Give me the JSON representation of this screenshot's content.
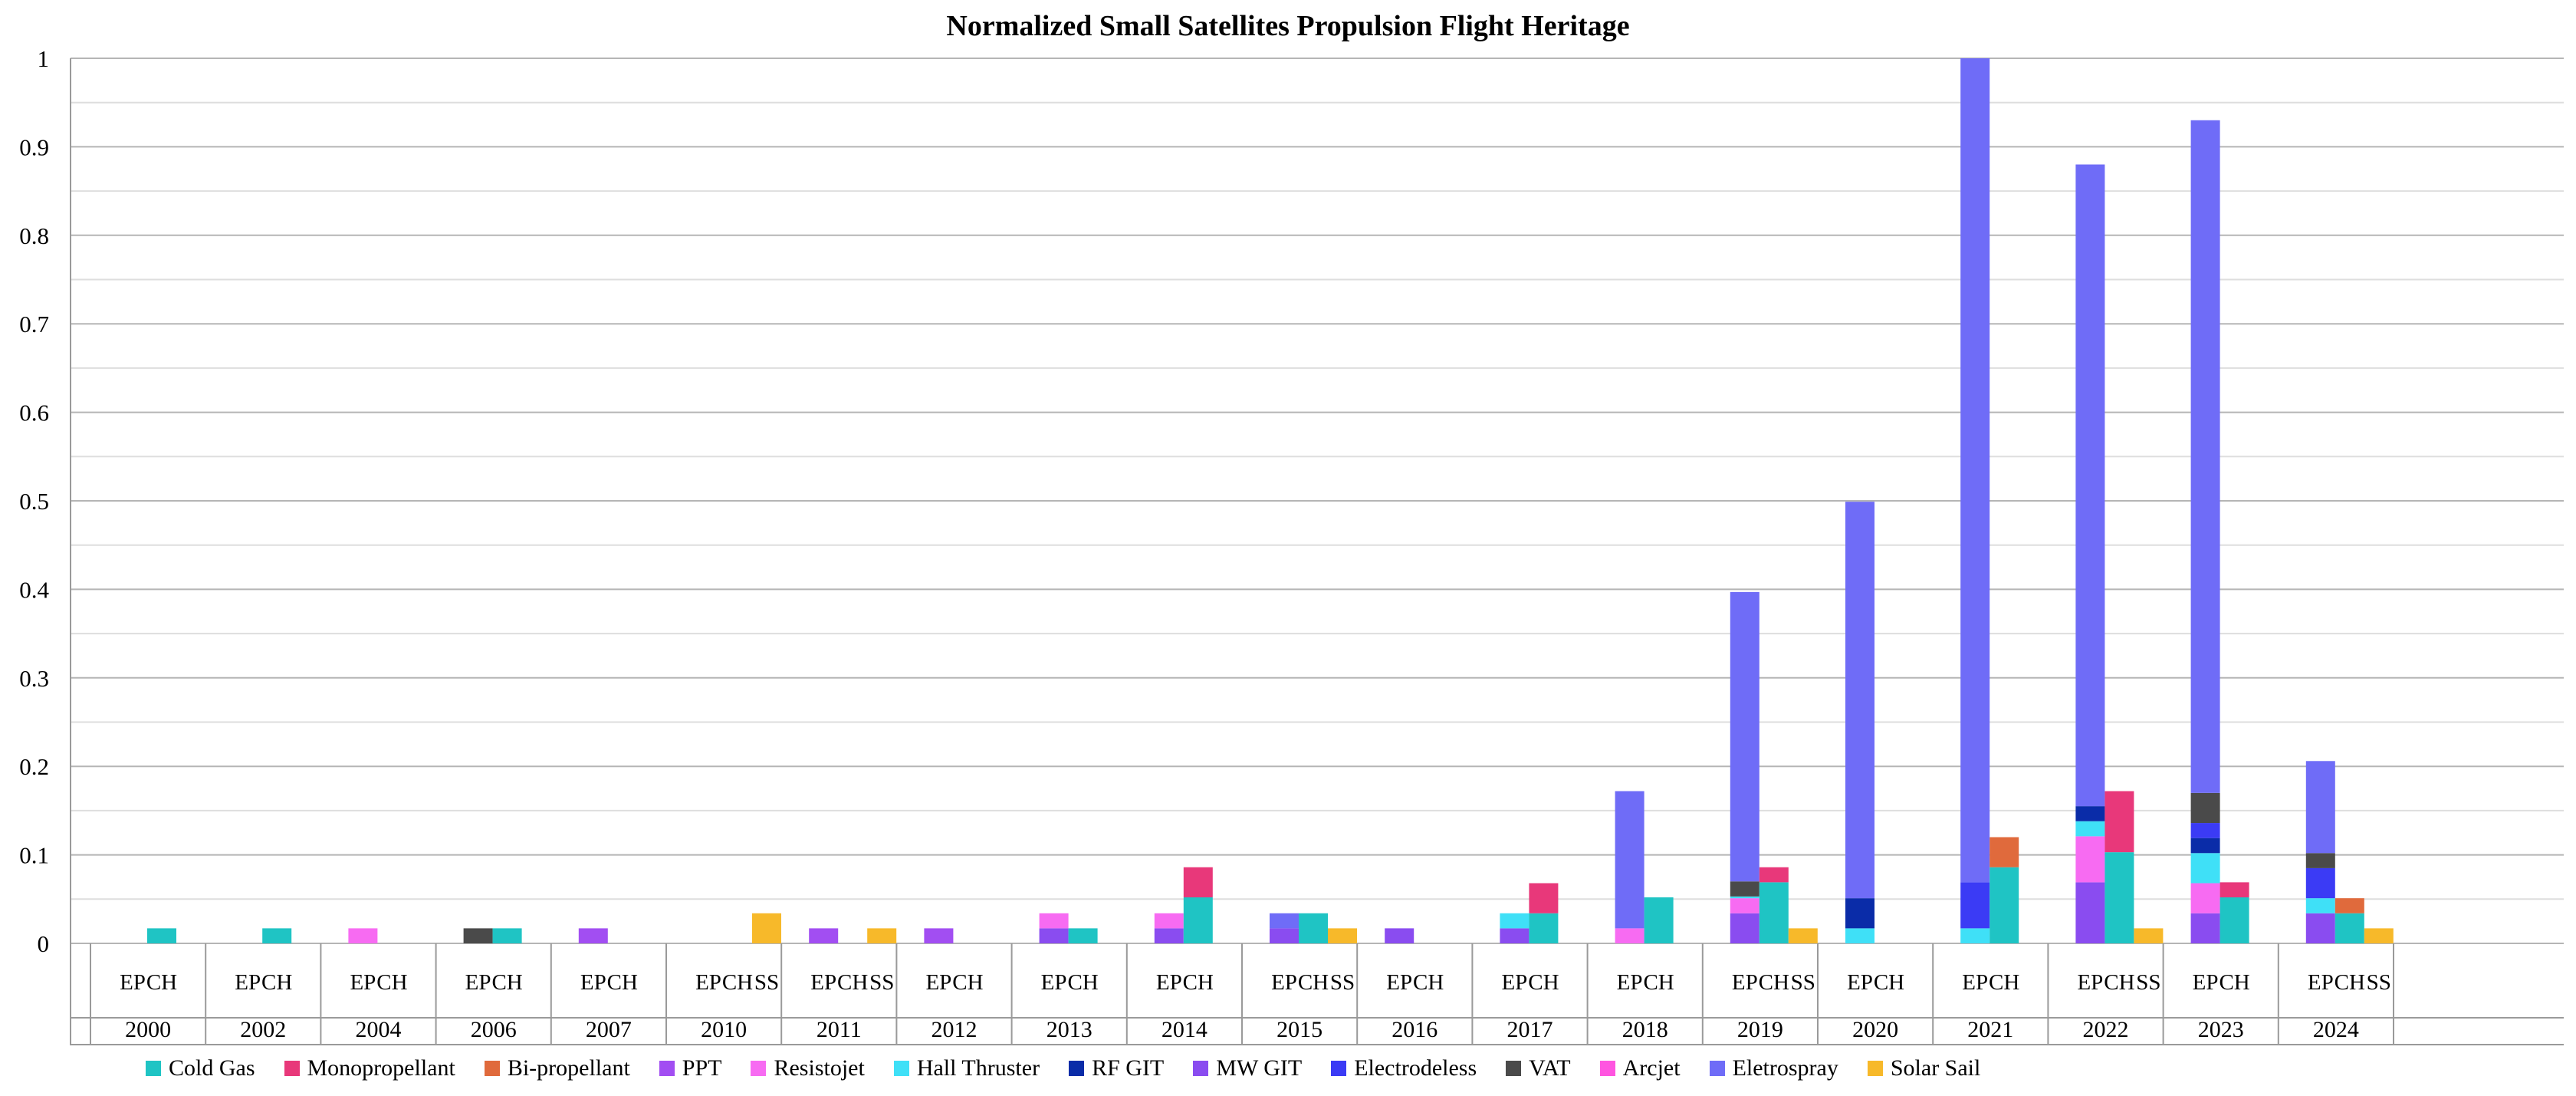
{
  "chart_data": {
    "type": "bar",
    "stacked": true,
    "title": "Normalized Small Satellites Propulsion Flight Heritage",
    "xlabel": "",
    "ylabel": "",
    "ylim": [
      0,
      1
    ],
    "yticks": [
      0,
      0.1,
      0.2,
      0.3,
      0.4,
      0.5,
      0.6,
      0.7,
      0.8,
      0.9,
      1
    ],
    "ytick_labels": [
      "0",
      "0.1",
      "0.2",
      "0.3",
      "0.4",
      "0.5",
      "0.6",
      "0.7",
      "0.8",
      "0.9",
      "1"
    ],
    "grid": true,
    "legend_position": "bottom",
    "series": [
      {
        "name": "Cold Gas",
        "color": "#1fc4c4"
      },
      {
        "name": "Monopropellant",
        "color": "#e8387a"
      },
      {
        "name": "Bi-propellant",
        "color": "#e06a3c"
      },
      {
        "name": "PPT",
        "color": "#a24ef2"
      },
      {
        "name": "Resistojet",
        "color": "#f76bf2"
      },
      {
        "name": "Hall Thruster",
        "color": "#3fe0f7"
      },
      {
        "name": "RF GIT",
        "color": "#0a2ca8"
      },
      {
        "name": "MW GIT",
        "color": "#8a4cf0"
      },
      {
        "name": "Electrodeless",
        "color": "#3b3bf5"
      },
      {
        "name": "VAT",
        "color": "#4a4a4a"
      },
      {
        "name": "Arcjet",
        "color": "#ff55e0"
      },
      {
        "name": "Eletrospray",
        "color": "#6f6cf7"
      },
      {
        "name": "Solar Sail",
        "color": "#f7b92a"
      }
    ],
    "groups": [
      {
        "year": "2000",
        "bars": [
          {
            "label": "EP",
            "segments": []
          },
          {
            "label": "CH",
            "segments": [
              {
                "series": "Cold Gas",
                "value": 0.017
              }
            ]
          }
        ]
      },
      {
        "year": "2002",
        "bars": [
          {
            "label": "EP",
            "segments": []
          },
          {
            "label": "CH",
            "segments": [
              {
                "series": "Cold Gas",
                "value": 0.017
              }
            ]
          }
        ]
      },
      {
        "year": "2004",
        "bars": [
          {
            "label": "EP",
            "segments": [
              {
                "series": "Resistojet",
                "value": 0.017
              }
            ]
          },
          {
            "label": "CH",
            "segments": []
          }
        ]
      },
      {
        "year": "2006",
        "bars": [
          {
            "label": "EP",
            "segments": [
              {
                "series": "VAT",
                "value": 0.017
              }
            ]
          },
          {
            "label": "CH",
            "segments": [
              {
                "series": "Cold Gas",
                "value": 0.017
              }
            ]
          }
        ]
      },
      {
        "year": "2007",
        "bars": [
          {
            "label": "EP",
            "segments": [
              {
                "series": "PPT",
                "value": 0.017
              }
            ]
          },
          {
            "label": "CH",
            "segments": []
          }
        ]
      },
      {
        "year": "2010",
        "bars": [
          {
            "label": "EP",
            "segments": []
          },
          {
            "label": "CH",
            "segments": []
          },
          {
            "label": "SS",
            "segments": [
              {
                "series": "Solar Sail",
                "value": 0.034
              }
            ]
          }
        ]
      },
      {
        "year": "2011",
        "bars": [
          {
            "label": "EP",
            "segments": [
              {
                "series": "PPT",
                "value": 0.017
              }
            ]
          },
          {
            "label": "CH",
            "segments": []
          },
          {
            "label": "SS",
            "segments": [
              {
                "series": "Solar Sail",
                "value": 0.017
              }
            ]
          }
        ]
      },
      {
        "year": "2012",
        "bars": [
          {
            "label": "EP",
            "segments": [
              {
                "series": "PPT",
                "value": 0.017
              }
            ]
          },
          {
            "label": "CH",
            "segments": []
          }
        ]
      },
      {
        "year": "2013",
        "bars": [
          {
            "label": "EP",
            "segments": [
              {
                "series": "MW GIT",
                "value": 0.017
              },
              {
                "series": "Resistojet",
                "value": 0.017
              }
            ]
          },
          {
            "label": "CH",
            "segments": [
              {
                "series": "Cold Gas",
                "value": 0.017
              }
            ]
          }
        ]
      },
      {
        "year": "2014",
        "bars": [
          {
            "label": "EP",
            "segments": [
              {
                "series": "MW GIT",
                "value": 0.017
              },
              {
                "series": "Resistojet",
                "value": 0.017
              }
            ]
          },
          {
            "label": "CH",
            "segments": [
              {
                "series": "Cold Gas",
                "value": 0.052
              },
              {
                "series": "Monopropellant",
                "value": 0.034
              }
            ]
          }
        ]
      },
      {
        "year": "2015",
        "bars": [
          {
            "label": "EP",
            "segments": [
              {
                "series": "MW GIT",
                "value": 0.017
              },
              {
                "series": "Eletrospray",
                "value": 0.017
              }
            ]
          },
          {
            "label": "CH",
            "segments": [
              {
                "series": "Cold Gas",
                "value": 0.034
              }
            ]
          },
          {
            "label": "SS",
            "segments": [
              {
                "series": "Solar Sail",
                "value": 0.017
              }
            ]
          }
        ]
      },
      {
        "year": "2016",
        "bars": [
          {
            "label": "EP",
            "segments": [
              {
                "series": "MW GIT",
                "value": 0.017
              }
            ]
          },
          {
            "label": "CH",
            "segments": []
          }
        ]
      },
      {
        "year": "2017",
        "bars": [
          {
            "label": "EP",
            "segments": [
              {
                "series": "MW GIT",
                "value": 0.017
              },
              {
                "series": "Hall Thruster",
                "value": 0.017
              }
            ]
          },
          {
            "label": "CH",
            "segments": [
              {
                "series": "Cold Gas",
                "value": 0.034
              },
              {
                "series": "Monopropellant",
                "value": 0.034
              }
            ]
          }
        ]
      },
      {
        "year": "2018",
        "bars": [
          {
            "label": "EP",
            "segments": [
              {
                "series": "Resistojet",
                "value": 0.017
              },
              {
                "series": "Eletrospray",
                "value": 0.155
              }
            ]
          },
          {
            "label": "CH",
            "segments": [
              {
                "series": "Cold Gas",
                "value": 0.052
              }
            ]
          }
        ]
      },
      {
        "year": "2019",
        "bars": [
          {
            "label": "EP",
            "segments": [
              {
                "series": "MW GIT",
                "value": 0.034
              },
              {
                "series": "Resistojet",
                "value": 0.017
              },
              {
                "series": "Hall Thruster",
                "value": 0.002
              },
              {
                "series": "VAT",
                "value": 0.017
              },
              {
                "series": "Eletrospray",
                "value": 0.327
              }
            ]
          },
          {
            "label": "CH",
            "segments": [
              {
                "series": "Cold Gas",
                "value": 0.069
              },
              {
                "series": "Monopropellant",
                "value": 0.017
              }
            ]
          },
          {
            "label": "SS",
            "segments": [
              {
                "series": "Solar Sail",
                "value": 0.017
              }
            ]
          }
        ]
      },
      {
        "year": "2020",
        "bars": [
          {
            "label": "EP",
            "segments": [
              {
                "series": "Hall Thruster",
                "value": 0.017
              },
              {
                "series": "RF GIT",
                "value": 0.034
              },
              {
                "series": "Eletrospray",
                "value": 0.448
              }
            ]
          },
          {
            "label": "CH",
            "segments": []
          }
        ]
      },
      {
        "year": "2021",
        "bars": [
          {
            "label": "EP",
            "segments": [
              {
                "series": "Hall Thruster",
                "value": 0.017
              },
              {
                "series": "Electrodeless",
                "value": 0.052
              },
              {
                "series": "Eletrospray",
                "value": 0.931
              }
            ]
          },
          {
            "label": "CH",
            "segments": [
              {
                "series": "Cold Gas",
                "value": 0.086
              },
              {
                "series": "Bi-propellant",
                "value": 0.034
              }
            ]
          }
        ]
      },
      {
        "year": "2022",
        "bars": [
          {
            "label": "EP",
            "segments": [
              {
                "series": "MW GIT",
                "value": 0.069
              },
              {
                "series": "Resistojet",
                "value": 0.052
              },
              {
                "series": "Hall Thruster",
                "value": 0.017
              },
              {
                "series": "RF GIT",
                "value": 0.017
              },
              {
                "series": "Eletrospray",
                "value": 0.725
              }
            ]
          },
          {
            "label": "CH",
            "segments": [
              {
                "series": "Cold Gas",
                "value": 0.103
              },
              {
                "series": "Monopropellant",
                "value": 0.069
              }
            ]
          },
          {
            "label": "SS",
            "segments": [
              {
                "series": "Solar Sail",
                "value": 0.017
              }
            ]
          }
        ]
      },
      {
        "year": "2023",
        "bars": [
          {
            "label": "EP",
            "segments": [
              {
                "series": "MW GIT",
                "value": 0.034
              },
              {
                "series": "Resistojet",
                "value": 0.034
              },
              {
                "series": "Hall Thruster",
                "value": 0.034
              },
              {
                "series": "RF GIT",
                "value": 0.017
              },
              {
                "series": "Electrodeless",
                "value": 0.017
              },
              {
                "series": "VAT",
                "value": 0.034
              },
              {
                "series": "Eletrospray",
                "value": 0.76
              }
            ]
          },
          {
            "label": "CH",
            "segments": [
              {
                "series": "Cold Gas",
                "value": 0.052
              },
              {
                "series": "Monopropellant",
                "value": 0.017
              }
            ]
          }
        ]
      },
      {
        "year": "2024",
        "bars": [
          {
            "label": "EP",
            "segments": [
              {
                "series": "MW GIT",
                "value": 0.034
              },
              {
                "series": "Hall Thruster",
                "value": 0.017
              },
              {
                "series": "Electrodeless",
                "value": 0.034
              },
              {
                "series": "VAT",
                "value": 0.017
              },
              {
                "series": "Eletrospray",
                "value": 0.104
              }
            ]
          },
          {
            "label": "CH",
            "segments": [
              {
                "series": "Cold Gas",
                "value": 0.034
              },
              {
                "series": "Bi-propellant",
                "value": 0.017
              }
            ]
          },
          {
            "label": "SS",
            "segments": [
              {
                "series": "Solar Sail",
                "value": 0.017
              }
            ]
          }
        ]
      }
    ]
  }
}
